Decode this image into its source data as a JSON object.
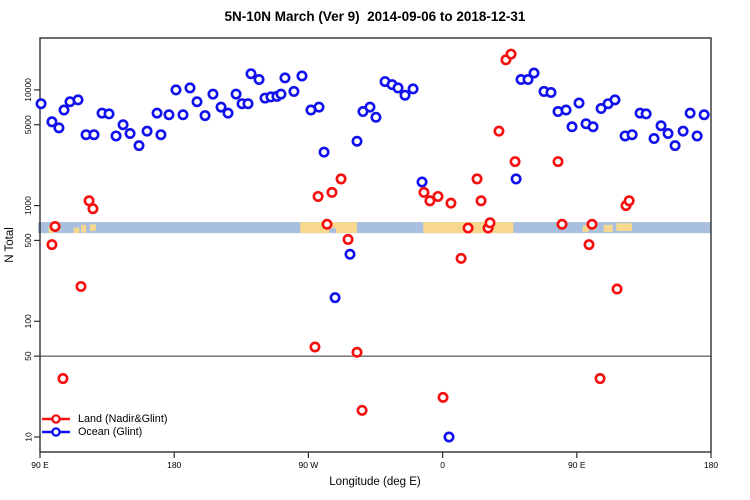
{
  "chart_data": {
    "type": "scatter",
    "title": "5N-10N March (Ver 9)  2014-09-06 to 2018-12-31",
    "xlabel": "Longitude (deg E)",
    "ylabel": "N Total",
    "grid": false,
    "x_axis": {
      "range": [
        90,
        540
      ],
      "ticks": [
        [
          90,
          "90 E"
        ],
        [
          180,
          "180"
        ],
        [
          270,
          "90 W"
        ],
        [
          360,
          "0"
        ],
        [
          450,
          "90 E"
        ],
        [
          540,
          "180"
        ]
      ]
    },
    "y_axis": {
      "scale": "log10",
      "range": [
        9,
        28000
      ],
      "ticks": [
        [
          10,
          "10"
        ],
        [
          50,
          "50"
        ],
        [
          100,
          "100"
        ],
        [
          500,
          "500"
        ],
        [
          1000,
          "1000"
        ],
        [
          5000,
          "5000"
        ],
        [
          10000,
          "10000"
        ]
      ]
    },
    "reference_line_n": 50,
    "map_band": {
      "n_top": 720,
      "n_bottom": 578,
      "ocean_color": "#a9bfdf",
      "land_color": "#f7d88e",
      "land_segments": [
        [
          95.8,
          99.5,
          0.35,
          1.0
        ],
        [
          100.3,
          103.5,
          0.1,
          0.8
        ],
        [
          112.5,
          116.5,
          0.5,
          1.0
        ],
        [
          117.5,
          121.0,
          0.25,
          0.95
        ],
        [
          123.5,
          127.5,
          0.2,
          0.8
        ],
        [
          264.5,
          284.0,
          0.0,
          1.0
        ],
        [
          284.0,
          288.5,
          0.0,
          0.55
        ],
        [
          288.5,
          302.5,
          0.0,
          1.0
        ],
        [
          347.0,
          407.5,
          0.0,
          1.0
        ],
        [
          454.0,
          458.0,
          0.3,
          0.9
        ],
        [
          460.0,
          463.0,
          0.15,
          0.7
        ],
        [
          468.0,
          474.0,
          0.25,
          0.9
        ],
        [
          476.5,
          487.0,
          0.1,
          0.8
        ]
      ]
    },
    "legend_position": "bottom-left",
    "series": [
      {
        "name": "Land (Nadir&Glint)",
        "color": "#f50f0f",
        "points": [
          [
            98,
            460
          ],
          [
            100.1,
            660
          ],
          [
            105.4,
            32
          ],
          [
            117.5,
            200
          ],
          [
            122.9,
            1100
          ],
          [
            125.5,
            940
          ],
          [
            274.4,
            60
          ],
          [
            276.5,
            1200
          ],
          [
            282.5,
            690
          ],
          [
            285.8,
            1300
          ],
          [
            291.9,
            1700
          ],
          [
            296.6,
            510
          ],
          [
            302.6,
            54
          ],
          [
            306,
            17
          ],
          [
            347.5,
            1300
          ],
          [
            351.5,
            1100
          ],
          [
            356.9,
            1200
          ],
          [
            360.3,
            22
          ],
          [
            365.6,
            1050
          ],
          [
            372.4,
            350
          ],
          [
            377.1,
            640
          ],
          [
            383.1,
            1700
          ],
          [
            385.8,
            1100
          ],
          [
            390.5,
            640
          ],
          [
            391.8,
            710
          ],
          [
            397.8,
            4400
          ],
          [
            402.5,
            18200
          ],
          [
            405.9,
            20400
          ],
          [
            408.6,
            2400
          ],
          [
            437.4,
            2400
          ],
          [
            440.1,
            690
          ],
          [
            458.2,
            460
          ],
          [
            460.2,
            690
          ],
          [
            465.6,
            32
          ],
          [
            477,
            190
          ],
          [
            483,
            1000
          ],
          [
            485.1,
            1100
          ]
        ]
      },
      {
        "name": "Ocean (Glint)",
        "color": "#1111ee",
        "points": [
          [
            90.7,
            7600
          ],
          [
            98,
            5300
          ],
          [
            102.7,
            4700
          ],
          [
            106.1,
            6700
          ],
          [
            110.1,
            7900
          ],
          [
            115.5,
            8200
          ],
          [
            120.9,
            4100
          ],
          [
            126.2,
            4100
          ],
          [
            131.6,
            6300
          ],
          [
            136.3,
            6200
          ],
          [
            141,
            4000
          ],
          [
            145.7,
            5000
          ],
          [
            150.4,
            4200
          ],
          [
            156.4,
            3300
          ],
          [
            161.8,
            4400
          ],
          [
            168.5,
            6300
          ],
          [
            171.1,
            4100
          ],
          [
            176.5,
            6100
          ],
          [
            181.2,
            10000
          ],
          [
            185.9,
            6100
          ],
          [
            190.6,
            10400
          ],
          [
            195.3,
            7900
          ],
          [
            200.7,
            6000
          ],
          [
            206,
            9200
          ],
          [
            211.4,
            7100
          ],
          [
            216.1,
            6300
          ],
          [
            221.5,
            9200
          ],
          [
            225.5,
            7600
          ],
          [
            229.5,
            7600
          ],
          [
            231.5,
            13800
          ],
          [
            236.9,
            12300
          ],
          [
            240.9,
            8500
          ],
          [
            244.9,
            8700
          ],
          [
            248.9,
            8800
          ],
          [
            251.6,
            9200
          ],
          [
            254.3,
            12700
          ],
          [
            260.3,
            9700
          ],
          [
            265.7,
            13200
          ],
          [
            271.7,
            6700
          ],
          [
            277.1,
            7100
          ],
          [
            280.5,
            2900
          ],
          [
            287.9,
            160
          ],
          [
            297.9,
            380
          ],
          [
            302.6,
            3600
          ],
          [
            306.6,
            6500
          ],
          [
            311.3,
            7100
          ],
          [
            315.3,
            5800
          ],
          [
            321.4,
            11800
          ],
          [
            326.1,
            11100
          ],
          [
            330.1,
            10400
          ],
          [
            334.8,
            9000
          ],
          [
            340.2,
            10200
          ],
          [
            346.2,
            1600
          ],
          [
            364.3,
            10
          ],
          [
            409.3,
            1700
          ],
          [
            412.6,
            12300
          ],
          [
            417.3,
            12300
          ],
          [
            421.3,
            14000
          ],
          [
            428,
            9700
          ],
          [
            432.7,
            9500
          ],
          [
            437.4,
            6500
          ],
          [
            442.8,
            6700
          ],
          [
            446.8,
            4800
          ],
          [
            451.5,
            7700
          ],
          [
            456.2,
            5100
          ],
          [
            460.9,
            4800
          ],
          [
            466.3,
            6900
          ],
          [
            471,
            7600
          ],
          [
            475.6,
            8200
          ],
          [
            482.4,
            4000
          ],
          [
            487.1,
            4100
          ],
          [
            492.4,
            6300
          ],
          [
            496.5,
            6200
          ],
          [
            501.8,
            3800
          ],
          [
            506.5,
            4900
          ],
          [
            511.2,
            4200
          ],
          [
            515.9,
            3300
          ],
          [
            521.3,
            4400
          ],
          [
            526,
            6300
          ],
          [
            530.7,
            4000
          ],
          [
            535.4,
            6100
          ]
        ]
      }
    ]
  }
}
